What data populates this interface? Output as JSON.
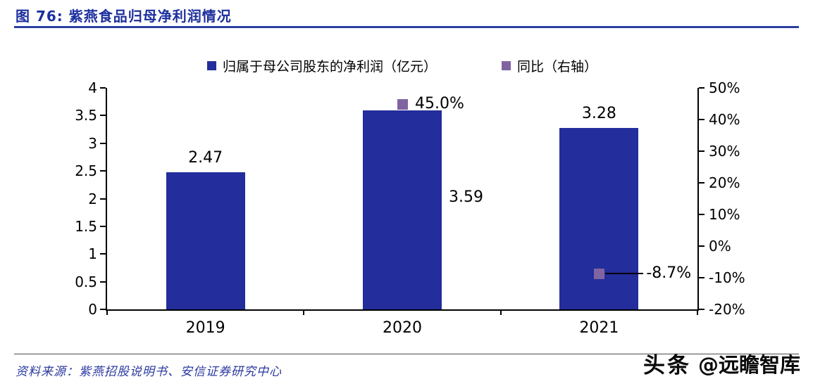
{
  "header": {
    "title": "图 76:  紫燕食品归母净利润情况"
  },
  "legend": {
    "items": [
      {
        "label": "归属于母公司股东的净利润（亿元）",
        "color": "#232d9b"
      },
      {
        "label": "同比（右轴）",
        "color": "#8064a2"
      }
    ]
  },
  "footer": {
    "source": "资料来源：紫燕招股说明书、安信证券研究中心",
    "watermark_brand": "头条",
    "watermark_handle": "@远瞻智库"
  },
  "colors": {
    "bar": "#232d9b",
    "marker": "#8064a2",
    "title": "#1c2f9e",
    "accent_rule": "#2b3f9f",
    "source_text": "#2c3aa0"
  },
  "chart_data": {
    "type": "bar",
    "title": "紫燕食品归母净利润情况",
    "categories": [
      "2019",
      "2020",
      "2021"
    ],
    "series": [
      {
        "name": "归属于母公司股东的净利润（亿元）",
        "type": "bar",
        "axis": "left",
        "unit": "亿元",
        "values": [
          2.47,
          3.59,
          3.28
        ],
        "labels": [
          "2.47",
          "3.59",
          "3.28"
        ],
        "color": "#232d9b"
      },
      {
        "name": "同比（右轴）",
        "type": "point",
        "axis": "right",
        "unit": "%",
        "color": "#8064a2",
        "points": [
          {
            "category": "2020",
            "value": 45.0,
            "label": "45.0%",
            "connector": false
          },
          {
            "category": "2021",
            "value": -8.7,
            "label": "-8.7%",
            "connector": true
          }
        ]
      }
    ],
    "left_axis": {
      "min": 0,
      "max": 4,
      "step": 0.5,
      "ticks": [
        "4",
        "3.5",
        "3",
        "2.5",
        "2",
        "1.5",
        "1",
        "0.5",
        "0"
      ]
    },
    "right_axis": {
      "min": -20,
      "max": 50,
      "step": 10,
      "ticks": [
        "50%",
        "40%",
        "30%",
        "20%",
        "10%",
        "0%",
        "-10%",
        "-20%"
      ]
    },
    "value_label_positions": [
      "top",
      "right-middle",
      "top"
    ],
    "grid": false,
    "legend_position": "top"
  }
}
